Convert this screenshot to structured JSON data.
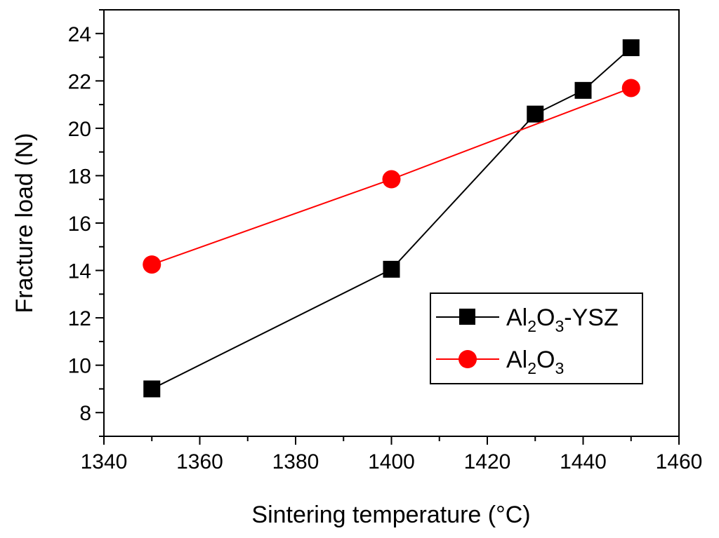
{
  "chart_data": {
    "type": "line",
    "xlabel": "Sintering temperature (°C)",
    "ylabel": "Fracture load (N)",
    "xlim": [
      1340,
      1460
    ],
    "ylim": [
      7,
      25
    ],
    "x_ticks": [
      1340,
      1360,
      1380,
      1400,
      1420,
      1440,
      1460
    ],
    "y_ticks": [
      8,
      10,
      12,
      14,
      16,
      18,
      20,
      22,
      24
    ],
    "x_tick_labels": [
      "1340",
      "1360",
      "1380",
      "1400",
      "1420",
      "1440",
      "1460"
    ],
    "y_tick_labels": [
      "8",
      "10",
      "12",
      "14",
      "16",
      "18",
      "20",
      "22",
      "24"
    ],
    "grid": false,
    "legend_position": "bottom-right",
    "series": [
      {
        "name": "Al2O3-YSZ",
        "label_main": "Al",
        "label_sub1": "2",
        "label_mid": "O",
        "label_sub2": "3",
        "label_tail": "-YSZ",
        "marker": "square",
        "color": "#000000",
        "x": [
          1350,
          1400,
          1430,
          1440,
          1450
        ],
        "y": [
          9.0,
          14.05,
          20.6,
          21.6,
          23.4
        ]
      },
      {
        "name": "Al2O3",
        "label_main": "Al",
        "label_sub1": "2",
        "label_mid": "O",
        "label_sub2": "3",
        "label_tail": "",
        "marker": "circle",
        "color": "#ff0000",
        "x": [
          1350,
          1400,
          1450
        ],
        "y": [
          14.25,
          17.85,
          21.7
        ]
      }
    ]
  }
}
